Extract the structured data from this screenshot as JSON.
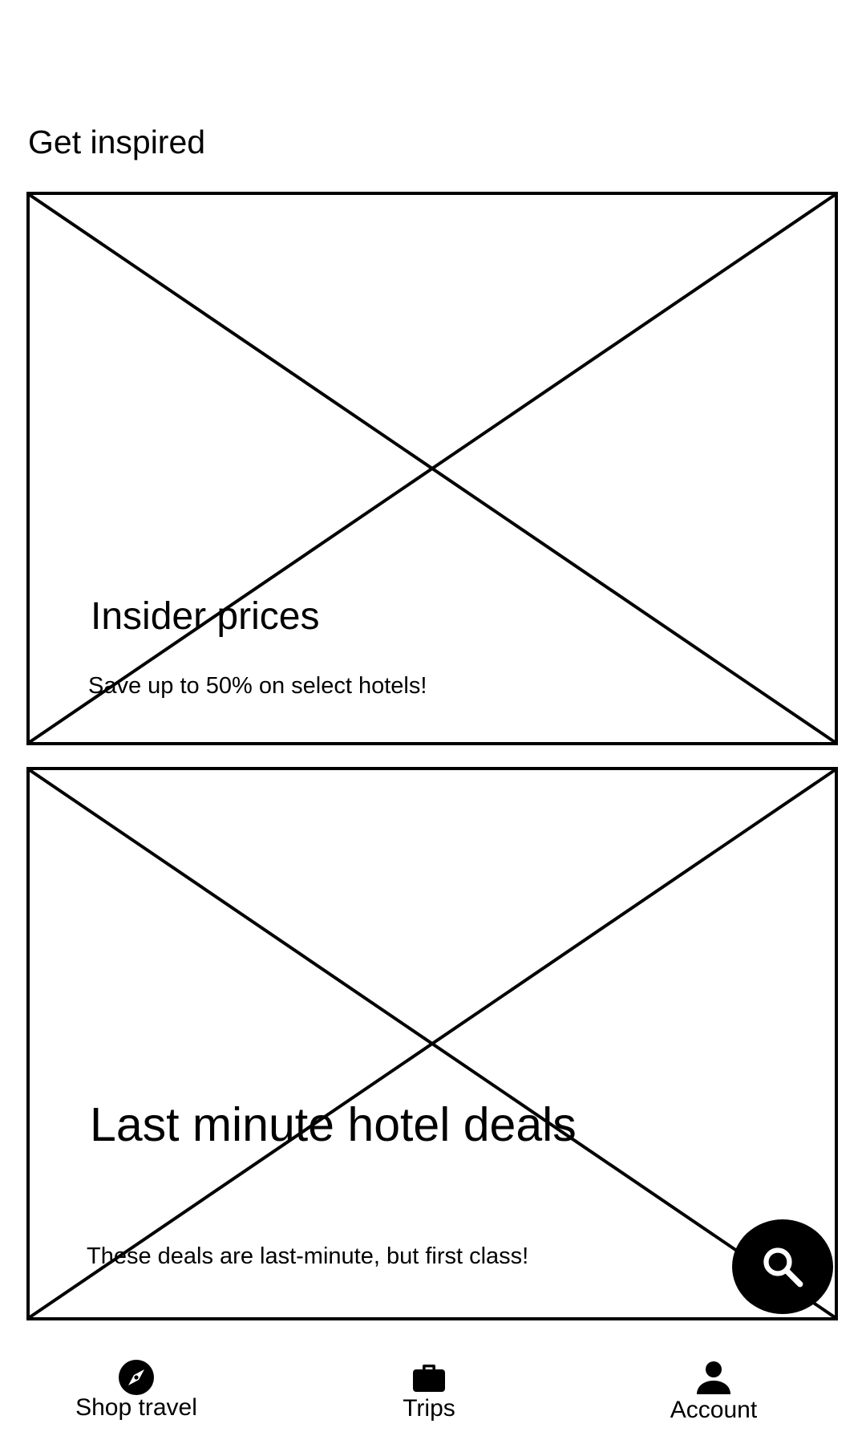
{
  "section": {
    "title": "Get inspired"
  },
  "cards": [
    {
      "title": "Insider prices",
      "description": "Save up to 50% on select hotels!"
    },
    {
      "title": "Last minute hotel deals",
      "description": "These deals are last-minute, but first class!"
    }
  ],
  "fab": {
    "icon": "search-icon"
  },
  "bottom_nav": {
    "items": [
      {
        "label": "Shop travel",
        "icon": "compass-icon"
      },
      {
        "label": "Trips",
        "icon": "briefcase-icon"
      },
      {
        "label": "Account",
        "icon": "person-icon"
      }
    ]
  },
  "colors": {
    "foreground": "#000000",
    "background": "#ffffff"
  }
}
